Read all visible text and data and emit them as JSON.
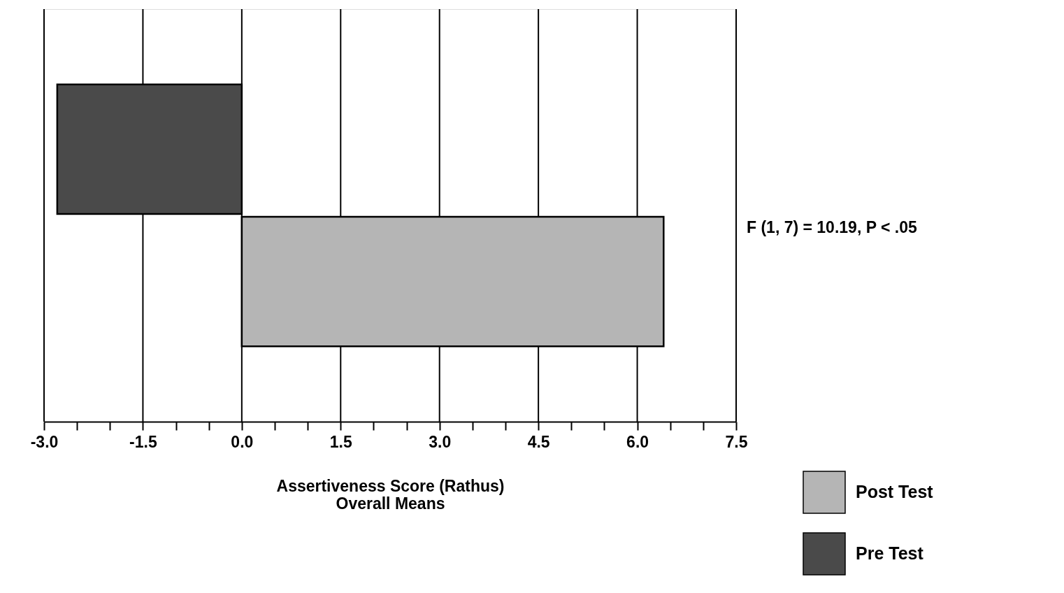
{
  "chart_data": {
    "type": "bar",
    "orientation": "horizontal",
    "xlabel": "Assertiveness Score (Rathus)\nOverall Means",
    "categories": [
      null,
      null
    ],
    "series": [
      {
        "name": "Post Test",
        "color": "#b5b5b5",
        "values": [
          null,
          6.4
        ]
      },
      {
        "name": "Pre Test",
        "color": "#4a4a4a",
        "values": [
          -2.8,
          null
        ]
      }
    ],
    "xlim": [
      -3.0,
      7.5
    ],
    "xticks": [
      {
        "value": -3.0,
        "label": "-3.0"
      },
      {
        "value": -2.5,
        "label": null
      },
      {
        "value": -2.0,
        "label": null
      },
      {
        "value": -1.5,
        "label": "-1.5"
      },
      {
        "value": -1.0,
        "label": null
      },
      {
        "value": -0.5,
        "label": null
      },
      {
        "value": 0,
        "label": "0.0"
      },
      {
        "value": 0.5,
        "label": null
      },
      {
        "value": 1.0,
        "label": null
      },
      {
        "value": 1.5,
        "label": "1.5"
      },
      {
        "value": 2.0,
        "label": null
      },
      {
        "value": 2.5,
        "label": null
      },
      {
        "value": 3.0,
        "label": "3.0"
      },
      {
        "value": 3.5,
        "label": null
      },
      {
        "value": 4.0,
        "label": null
      },
      {
        "value": 4.5,
        "label": "4.5"
      },
      {
        "value": 5.0,
        "label": null
      },
      {
        "value": 5.5,
        "label": null
      },
      {
        "value": 6.0,
        "label": "6.0"
      },
      {
        "value": 6.5,
        "label": null
      },
      {
        "value": 7.0,
        "label": null
      },
      {
        "value": 7.5,
        "label": "7.5"
      }
    ],
    "grid": "x",
    "legend": "bottom right",
    "annotations": [
      "F (1, 7) = 10.19, P < .05"
    ]
  }
}
